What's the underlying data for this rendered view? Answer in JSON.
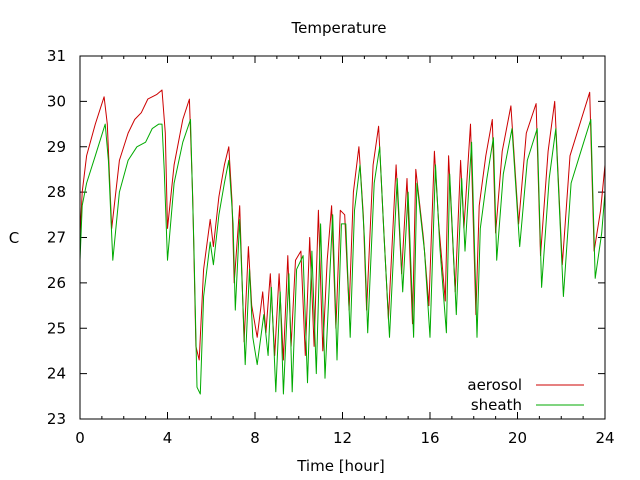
{
  "chart_data": {
    "type": "line",
    "title": "Temperature",
    "xlabel": "Time [hour]",
    "ylabel": "C",
    "xlim": [
      0,
      24
    ],
    "ylim": [
      23,
      31
    ],
    "x_ticks": [
      0,
      4,
      8,
      12,
      16,
      20,
      24
    ],
    "y_ticks": [
      23,
      24,
      25,
      26,
      27,
      28,
      29,
      30,
      31
    ],
    "grid": false,
    "legend_position": "bottom-right",
    "series": [
      {
        "name": "aerosol",
        "color": "#cc0000",
        "x": [
          0.0,
          0.1,
          0.3,
          0.7,
          1.1,
          1.25,
          1.45,
          1.8,
          2.2,
          2.5,
          2.8,
          3.1,
          3.5,
          3.75,
          3.9,
          4.0,
          4.3,
          4.7,
          5.0,
          5.15,
          5.3,
          5.45,
          5.65,
          5.95,
          6.1,
          6.35,
          6.6,
          6.8,
          6.95,
          7.05,
          7.3,
          7.5,
          7.7,
          7.85,
          8.1,
          8.35,
          8.5,
          8.7,
          8.9,
          9.1,
          9.3,
          9.5,
          9.65,
          9.85,
          10.1,
          10.3,
          10.5,
          10.7,
          10.9,
          11.1,
          11.3,
          11.5,
          11.7,
          11.9,
          12.1,
          12.3,
          12.5,
          12.75,
          12.95,
          13.1,
          13.4,
          13.65,
          13.85,
          14.1,
          14.45,
          14.7,
          14.95,
          15.2,
          15.35,
          15.7,
          15.95,
          16.2,
          16.4,
          16.7,
          16.85,
          17.15,
          17.4,
          17.55,
          17.85,
          18.1,
          18.25,
          18.55,
          18.85,
          19.0,
          19.3,
          19.7,
          20.05,
          20.4,
          20.85,
          21.05,
          21.4,
          21.7,
          22.05,
          22.4,
          22.85,
          23.3,
          23.5,
          23.8,
          24.0
        ],
        "y": [
          27.0,
          28.0,
          28.8,
          29.5,
          30.1,
          29.5,
          27.2,
          28.7,
          29.3,
          29.6,
          29.75,
          30.05,
          30.15,
          30.25,
          29.3,
          27.2,
          28.6,
          29.6,
          30.05,
          27.9,
          24.6,
          24.3,
          26.3,
          27.4,
          26.8,
          27.9,
          28.6,
          29.0,
          27.8,
          26.0,
          27.7,
          24.7,
          26.8,
          25.5,
          24.8,
          25.8,
          24.9,
          26.2,
          24.4,
          26.2,
          24.3,
          26.6,
          24.6,
          26.5,
          26.7,
          24.4,
          27.0,
          24.6,
          27.6,
          24.5,
          26.5,
          27.7,
          25.0,
          27.6,
          27.5,
          25.4,
          28.0,
          29.0,
          27.5,
          25.4,
          28.6,
          29.45,
          27.5,
          25.2,
          28.6,
          26.2,
          28.3,
          25.1,
          28.5,
          27.0,
          25.5,
          28.9,
          27.3,
          25.6,
          28.8,
          25.8,
          28.7,
          27.2,
          29.5,
          25.3,
          27.7,
          28.8,
          29.6,
          27.1,
          28.9,
          29.9,
          27.3,
          29.3,
          29.95,
          26.6,
          28.9,
          30.0,
          26.4,
          28.8,
          29.5,
          30.2,
          26.7,
          27.6,
          28.6
        ]
      },
      {
        "name": "sheath",
        "color": "#00aa00",
        "x": [
          0.0,
          0.1,
          0.3,
          0.7,
          1.15,
          1.3,
          1.5,
          1.8,
          2.2,
          2.6,
          3.0,
          3.3,
          3.6,
          3.75,
          3.85,
          4.0,
          4.3,
          4.7,
          5.05,
          5.2,
          5.35,
          5.5,
          5.65,
          5.95,
          6.1,
          6.35,
          6.6,
          6.8,
          7.0,
          7.1,
          7.3,
          7.55,
          7.75,
          7.9,
          8.1,
          8.4,
          8.6,
          8.75,
          8.95,
          9.15,
          9.3,
          9.55,
          9.7,
          9.9,
          10.2,
          10.4,
          10.6,
          10.8,
          11.0,
          11.2,
          11.4,
          11.55,
          11.75,
          11.95,
          12.15,
          12.35,
          12.55,
          12.8,
          13.0,
          13.15,
          13.45,
          13.7,
          13.9,
          14.15,
          14.5,
          14.75,
          15.0,
          15.25,
          15.4,
          15.75,
          16.0,
          16.25,
          16.45,
          16.75,
          16.9,
          17.2,
          17.45,
          17.6,
          17.9,
          18.15,
          18.3,
          18.6,
          18.9,
          19.05,
          19.35,
          19.75,
          20.1,
          20.45,
          20.9,
          21.1,
          21.45,
          21.75,
          22.1,
          22.45,
          22.9,
          23.35,
          23.55,
          23.85,
          24.0
        ],
        "y": [
          26.5,
          27.7,
          28.2,
          28.8,
          29.5,
          28.7,
          26.5,
          28.0,
          28.7,
          29.0,
          29.1,
          29.4,
          29.5,
          29.5,
          28.5,
          26.5,
          28.2,
          29.1,
          29.6,
          26.9,
          23.7,
          23.55,
          25.7,
          26.9,
          26.4,
          27.5,
          28.2,
          28.7,
          27.3,
          25.4,
          27.4,
          24.2,
          26.3,
          24.8,
          24.2,
          25.3,
          24.4,
          25.9,
          23.6,
          25.8,
          23.55,
          26.2,
          23.6,
          26.3,
          26.6,
          23.8,
          26.7,
          24.0,
          27.3,
          23.9,
          26.0,
          27.5,
          24.3,
          27.3,
          27.3,
          24.8,
          27.6,
          28.6,
          27.0,
          24.9,
          28.2,
          29.0,
          27.0,
          24.8,
          28.3,
          25.8,
          28.0,
          24.8,
          28.2,
          26.7,
          24.8,
          28.6,
          26.8,
          24.9,
          28.4,
          25.3,
          28.3,
          26.7,
          29.1,
          24.8,
          27.2,
          28.3,
          29.2,
          26.5,
          28.4,
          29.4,
          26.8,
          28.7,
          29.4,
          25.9,
          28.3,
          29.4,
          25.7,
          28.2,
          28.9,
          29.6,
          26.1,
          27.1,
          28.0
        ]
      }
    ]
  }
}
